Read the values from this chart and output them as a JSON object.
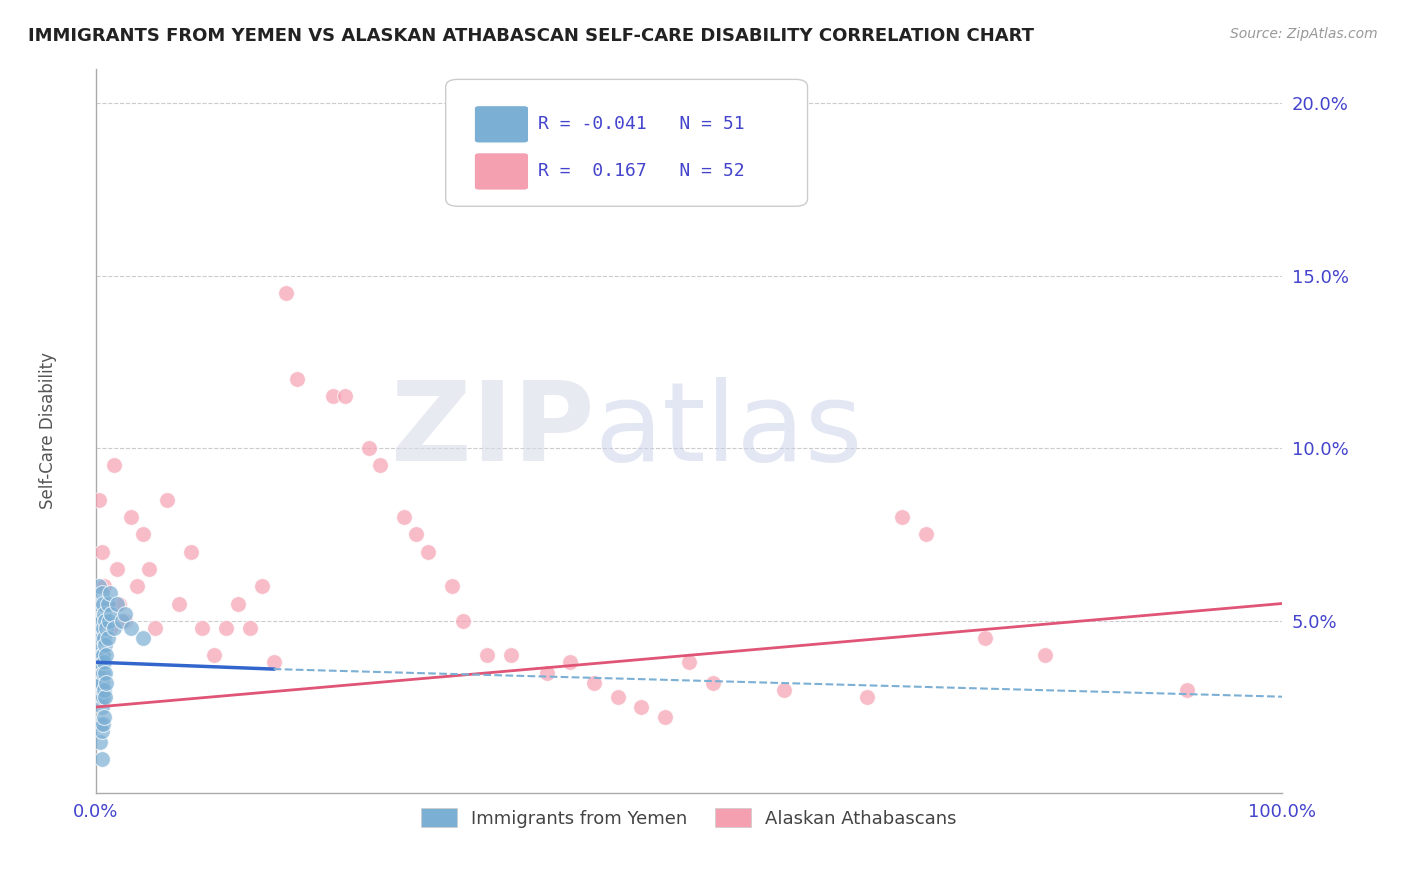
{
  "title": "IMMIGRANTS FROM YEMEN VS ALASKAN ATHABASCAN SELF-CARE DISABILITY CORRELATION CHART",
  "source": "Source: ZipAtlas.com",
  "ylabel": "Self-Care Disability",
  "xlim": [
    0.0,
    1.0
  ],
  "ylim": [
    0.0,
    0.21
  ],
  "yticks": [
    0.05,
    0.1,
    0.15,
    0.2
  ],
  "ytick_labels": [
    "5.0%",
    "10.0%",
    "15.0%",
    "20.0%"
  ],
  "blue_label": "Immigrants from Yemen",
  "pink_label": "Alaskan Athabascans",
  "blue_R": -0.041,
  "blue_N": 51,
  "pink_R": 0.167,
  "pink_N": 52,
  "blue_color": "#7bafd4",
  "pink_color": "#f4a0b0",
  "blue_scatter": [
    [
      0.001,
      0.04
    ],
    [
      0.002,
      0.038
    ],
    [
      0.002,
      0.035
    ],
    [
      0.003,
      0.06
    ],
    [
      0.003,
      0.055
    ],
    [
      0.003,
      0.05
    ],
    [
      0.003,
      0.045
    ],
    [
      0.004,
      0.048
    ],
    [
      0.004,
      0.042
    ],
    [
      0.004,
      0.038
    ],
    [
      0.004,
      0.032
    ],
    [
      0.004,
      0.028
    ],
    [
      0.004,
      0.02
    ],
    [
      0.004,
      0.015
    ],
    [
      0.005,
      0.058
    ],
    [
      0.005,
      0.05
    ],
    [
      0.005,
      0.045
    ],
    [
      0.005,
      0.04
    ],
    [
      0.005,
      0.032
    ],
    [
      0.005,
      0.025
    ],
    [
      0.005,
      0.018
    ],
    [
      0.005,
      0.01
    ],
    [
      0.006,
      0.055
    ],
    [
      0.006,
      0.048
    ],
    [
      0.006,
      0.04
    ],
    [
      0.006,
      0.035
    ],
    [
      0.006,
      0.028
    ],
    [
      0.006,
      0.02
    ],
    [
      0.007,
      0.052
    ],
    [
      0.007,
      0.045
    ],
    [
      0.007,
      0.038
    ],
    [
      0.007,
      0.03
    ],
    [
      0.007,
      0.022
    ],
    [
      0.008,
      0.05
    ],
    [
      0.008,
      0.043
    ],
    [
      0.008,
      0.035
    ],
    [
      0.008,
      0.028
    ],
    [
      0.009,
      0.048
    ],
    [
      0.009,
      0.04
    ],
    [
      0.009,
      0.032
    ],
    [
      0.01,
      0.055
    ],
    [
      0.01,
      0.045
    ],
    [
      0.011,
      0.05
    ],
    [
      0.012,
      0.058
    ],
    [
      0.013,
      0.052
    ],
    [
      0.015,
      0.048
    ],
    [
      0.018,
      0.055
    ],
    [
      0.022,
      0.05
    ],
    [
      0.025,
      0.052
    ],
    [
      0.03,
      0.048
    ],
    [
      0.04,
      0.045
    ]
  ],
  "pink_scatter": [
    [
      0.003,
      0.085
    ],
    [
      0.005,
      0.07
    ],
    [
      0.007,
      0.06
    ],
    [
      0.01,
      0.055
    ],
    [
      0.012,
      0.048
    ],
    [
      0.015,
      0.095
    ],
    [
      0.018,
      0.065
    ],
    [
      0.02,
      0.055
    ],
    [
      0.025,
      0.05
    ],
    [
      0.03,
      0.08
    ],
    [
      0.035,
      0.06
    ],
    [
      0.04,
      0.075
    ],
    [
      0.045,
      0.065
    ],
    [
      0.05,
      0.048
    ],
    [
      0.06,
      0.085
    ],
    [
      0.07,
      0.055
    ],
    [
      0.08,
      0.07
    ],
    [
      0.09,
      0.048
    ],
    [
      0.1,
      0.04
    ],
    [
      0.11,
      0.048
    ],
    [
      0.12,
      0.055
    ],
    [
      0.13,
      0.048
    ],
    [
      0.14,
      0.06
    ],
    [
      0.15,
      0.038
    ],
    [
      0.16,
      0.145
    ],
    [
      0.17,
      0.12
    ],
    [
      0.2,
      0.115
    ],
    [
      0.21,
      0.115
    ],
    [
      0.23,
      0.1
    ],
    [
      0.24,
      0.095
    ],
    [
      0.26,
      0.08
    ],
    [
      0.27,
      0.075
    ],
    [
      0.28,
      0.07
    ],
    [
      0.3,
      0.06
    ],
    [
      0.31,
      0.05
    ],
    [
      0.33,
      0.04
    ],
    [
      0.35,
      0.04
    ],
    [
      0.38,
      0.035
    ],
    [
      0.4,
      0.038
    ],
    [
      0.42,
      0.032
    ],
    [
      0.44,
      0.028
    ],
    [
      0.46,
      0.025
    ],
    [
      0.48,
      0.022
    ],
    [
      0.5,
      0.038
    ],
    [
      0.52,
      0.032
    ],
    [
      0.58,
      0.03
    ],
    [
      0.65,
      0.028
    ],
    [
      0.68,
      0.08
    ],
    [
      0.7,
      0.075
    ],
    [
      0.75,
      0.045
    ],
    [
      0.8,
      0.04
    ],
    [
      0.92,
      0.03
    ]
  ],
  "background_color": "#ffffff",
  "grid_color": "#cccccc",
  "axis_color": "#4444cc",
  "title_color": "#222222",
  "blue_line_x": [
    0.0,
    0.15,
    1.0
  ],
  "blue_line_y": [
    0.038,
    0.036,
    0.028
  ],
  "blue_line_solid_end": 0.15,
  "pink_line_x": [
    0.0,
    1.0
  ],
  "pink_line_y": [
    0.025,
    0.055
  ]
}
